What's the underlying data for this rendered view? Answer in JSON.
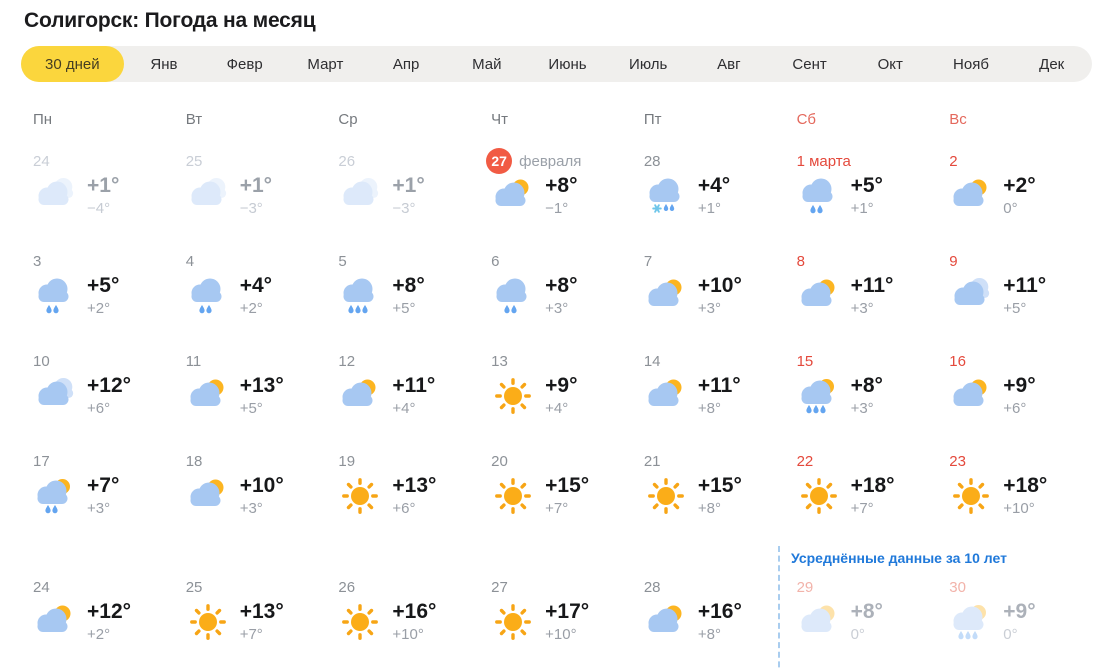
{
  "page": {
    "title": "Солигорск: Погода на месяц"
  },
  "tabs": [
    {
      "label": "30 дней",
      "active": true
    },
    {
      "label": "Янв"
    },
    {
      "label": "Февр"
    },
    {
      "label": "Март"
    },
    {
      "label": "Апр"
    },
    {
      "label": "Май"
    },
    {
      "label": "Июнь"
    },
    {
      "label": "Июль"
    },
    {
      "label": "Авг"
    },
    {
      "label": "Сент"
    },
    {
      "label": "Окт"
    },
    {
      "label": "Нояб"
    },
    {
      "label": "Дек"
    }
  ],
  "weekday_headers": [
    {
      "label": "Пн",
      "weekend": false
    },
    {
      "label": "Вт",
      "weekend": false
    },
    {
      "label": "Ср",
      "weekend": false
    },
    {
      "label": "Чт",
      "weekend": false
    },
    {
      "label": "Пт",
      "weekend": false
    },
    {
      "label": "Сб",
      "weekend": true
    },
    {
      "label": "Вс",
      "weekend": true
    }
  ],
  "calendar": {
    "avg_note": "Усреднённые данные за 10 лет",
    "days": [
      {
        "day": "24",
        "state": "past",
        "icon": "cloudy",
        "high": "+1°",
        "low": "−4°"
      },
      {
        "day": "25",
        "state": "past",
        "icon": "cloudy",
        "high": "+1°",
        "low": "−3°"
      },
      {
        "day": "26",
        "state": "past",
        "icon": "cloudy",
        "high": "+1°",
        "low": "−3°"
      },
      {
        "day": "27",
        "suffix": "февраля",
        "state": "today",
        "icon": "partly",
        "high": "+8°",
        "low": "−1°"
      },
      {
        "day": "28",
        "icon": "sleet",
        "high": "+4°",
        "low": "+1°"
      },
      {
        "day": "1 марта",
        "weekend": true,
        "icon": "rain2",
        "high": "+5°",
        "low": "+1°"
      },
      {
        "day": "2",
        "weekend": true,
        "icon": "partly",
        "high": "+2°",
        "low": "0°"
      },
      {
        "day": "3",
        "icon": "rain2",
        "high": "+5°",
        "low": "+2°"
      },
      {
        "day": "4",
        "icon": "rain2",
        "high": "+4°",
        "low": "+2°"
      },
      {
        "day": "5",
        "icon": "rain3",
        "high": "+8°",
        "low": "+5°"
      },
      {
        "day": "6",
        "icon": "rain2",
        "high": "+8°",
        "low": "+3°"
      },
      {
        "day": "7",
        "icon": "partly",
        "high": "+10°",
        "low": "+3°"
      },
      {
        "day": "8",
        "weekend": true,
        "icon": "partly",
        "high": "+11°",
        "low": "+3°"
      },
      {
        "day": "9",
        "weekend": true,
        "icon": "cloudy",
        "high": "+11°",
        "low": "+5°"
      },
      {
        "day": "10",
        "icon": "cloudy",
        "high": "+12°",
        "low": "+6°"
      },
      {
        "day": "11",
        "icon": "partly",
        "high": "+13°",
        "low": "+5°"
      },
      {
        "day": "12",
        "icon": "partly",
        "high": "+11°",
        "low": "+4°"
      },
      {
        "day": "13",
        "icon": "sunny",
        "high": "+9°",
        "low": "+4°"
      },
      {
        "day": "14",
        "icon": "partly",
        "high": "+11°",
        "low": "+8°"
      },
      {
        "day": "15",
        "weekend": true,
        "icon": "sunrain3",
        "high": "+8°",
        "low": "+3°"
      },
      {
        "day": "16",
        "weekend": true,
        "icon": "partly",
        "high": "+9°",
        "low": "+6°"
      },
      {
        "day": "17",
        "icon": "sunrain2",
        "high": "+7°",
        "low": "+3°"
      },
      {
        "day": "18",
        "icon": "partly",
        "high": "+10°",
        "low": "+3°"
      },
      {
        "day": "19",
        "icon": "sunny",
        "high": "+13°",
        "low": "+6°"
      },
      {
        "day": "20",
        "icon": "sunny",
        "high": "+15°",
        "low": "+7°"
      },
      {
        "day": "21",
        "icon": "sunny",
        "high": "+15°",
        "low": "+8°"
      },
      {
        "day": "22",
        "weekend": true,
        "icon": "sunny",
        "high": "+18°",
        "low": "+7°"
      },
      {
        "day": "23",
        "weekend": true,
        "icon": "sunny",
        "high": "+18°",
        "low": "+10°"
      },
      {
        "day": "24",
        "icon": "partly",
        "high": "+12°",
        "low": "+2°"
      },
      {
        "day": "25",
        "icon": "sunny",
        "high": "+13°",
        "low": "+7°"
      },
      {
        "day": "26",
        "icon": "sunny",
        "high": "+16°",
        "low": "+10°"
      },
      {
        "day": "27",
        "icon": "sunny",
        "high": "+17°",
        "low": "+10°"
      },
      {
        "day": "28",
        "icon": "partly",
        "high": "+16°",
        "low": "+8°"
      },
      {
        "day": "29",
        "state": "avg",
        "weekend": true,
        "icon": "partly",
        "high": "+8°",
        "low": "0°"
      },
      {
        "day": "30",
        "state": "avg",
        "weekend": true,
        "icon": "sunrain3",
        "high": "+9°",
        "low": "0°"
      }
    ]
  },
  "colors": {
    "tab_active_yellow": "#fbd63d",
    "weekend_red": "#e4493c",
    "today_badge_red": "#f15b44",
    "avg_note_blue": "#2079da",
    "cloud_blue": "#a7c8f2",
    "sun_orange": "#fbad18"
  }
}
